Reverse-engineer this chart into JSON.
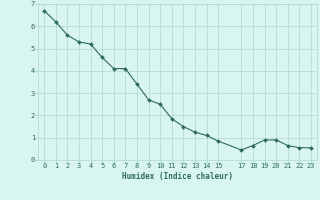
{
  "x": [
    0,
    1,
    2,
    3,
    4,
    5,
    6,
    7,
    8,
    9,
    10,
    11,
    12,
    13,
    14,
    15,
    17,
    18,
    19,
    20,
    21,
    22,
    23
  ],
  "y": [
    6.7,
    6.2,
    5.6,
    5.3,
    5.2,
    4.6,
    4.1,
    4.1,
    3.4,
    2.7,
    2.5,
    1.85,
    1.5,
    1.25,
    1.1,
    0.85,
    0.45,
    0.65,
    0.9,
    0.9,
    0.65,
    0.55,
    0.55
  ],
  "line_color": "#2e6b5e",
  "marker": "D",
  "marker_size": 2.0,
  "bg_color": "#d9f5f0",
  "grid_color": "#b0d8d0",
  "xlabel": "Humidex (Indice chaleur)",
  "xlim": [
    -0.5,
    23.5
  ],
  "ylim": [
    0,
    7
  ],
  "xticks": [
    0,
    1,
    2,
    3,
    4,
    5,
    6,
    7,
    8,
    9,
    10,
    11,
    12,
    13,
    14,
    15,
    17,
    18,
    19,
    20,
    21,
    22,
    23
  ],
  "yticks": [
    0,
    1,
    2,
    3,
    4,
    5,
    6,
    7
  ],
  "axis_fontsize": 5.5,
  "tick_fontsize": 5.0,
  "tick_color": "#2e6b5e"
}
